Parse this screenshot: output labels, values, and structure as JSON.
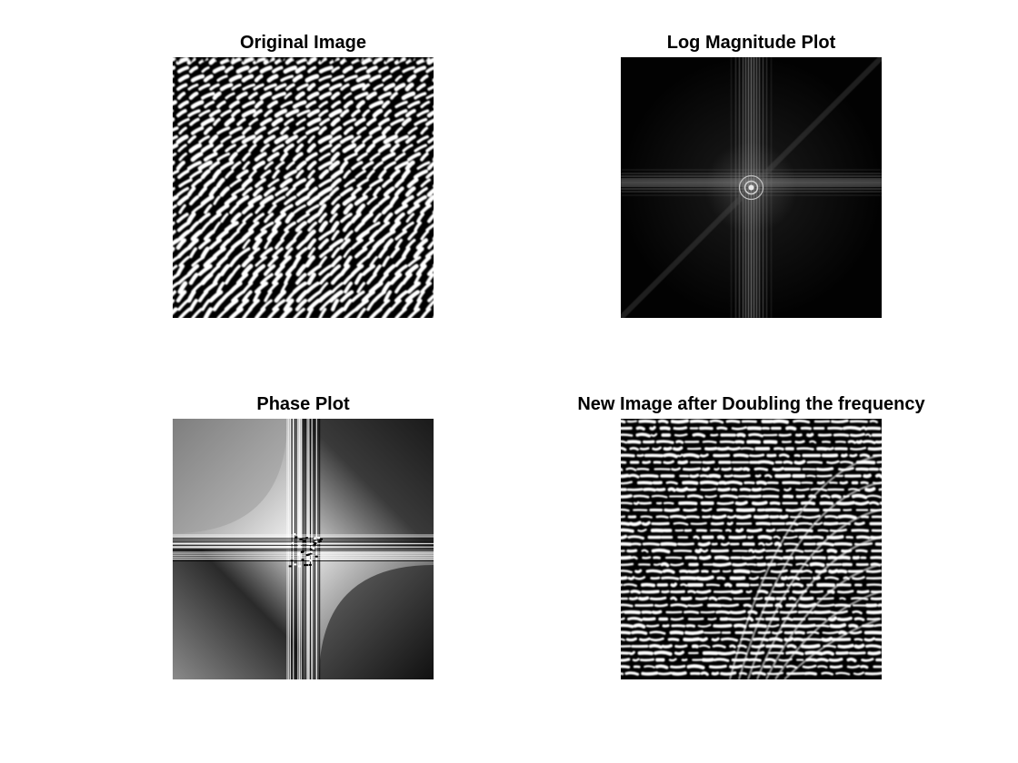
{
  "figure": {
    "panels": [
      {
        "title": "Original Image"
      },
      {
        "title": "Log Magnitude Plot"
      },
      {
        "title": "Phase Plot"
      },
      {
        "title": "New Image after Doubling the frequency"
      }
    ]
  }
}
